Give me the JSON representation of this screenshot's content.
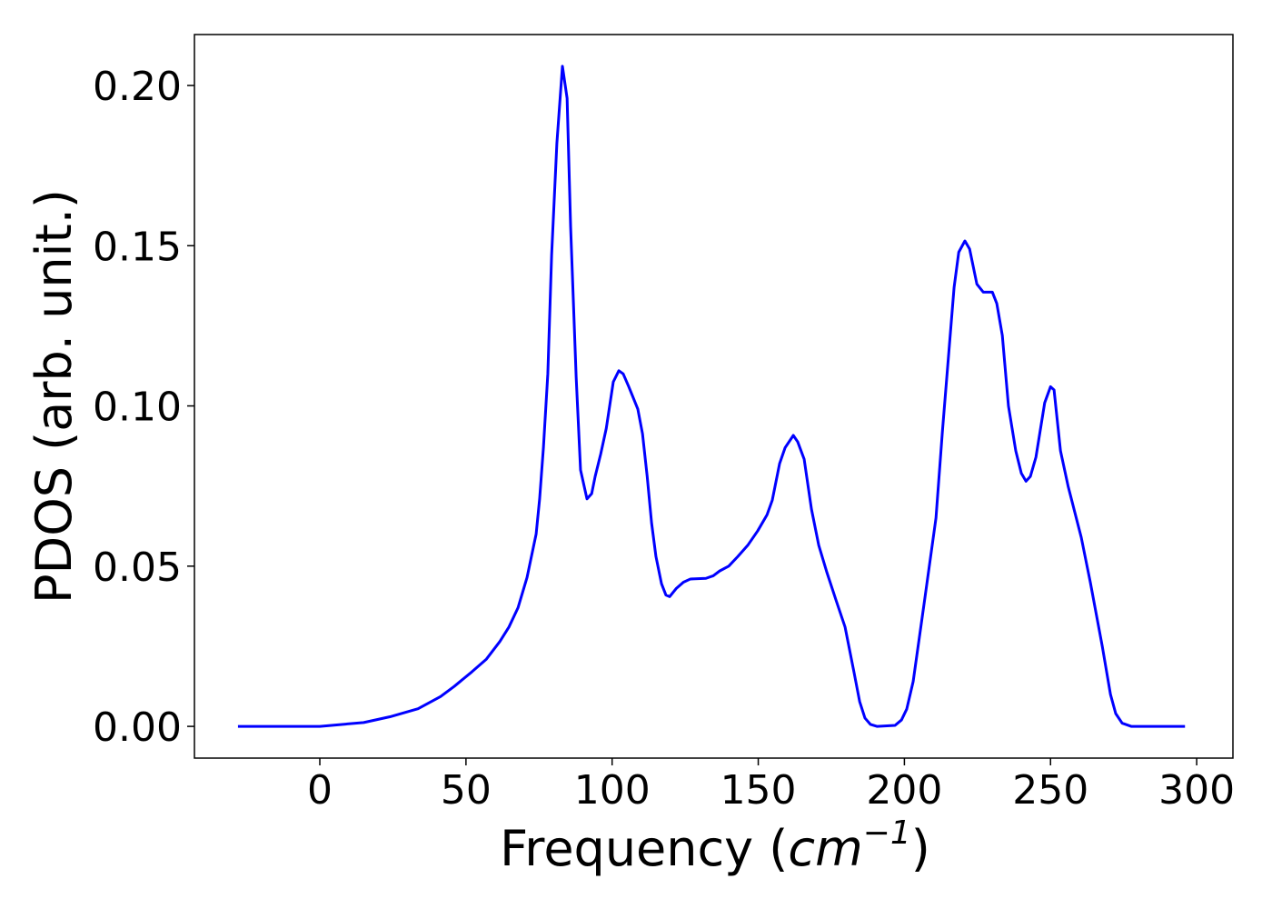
{
  "chart_data": {
    "type": "line",
    "xlabel_parts": [
      "Frequency (",
      "cm",
      "−1",
      ")"
    ],
    "ylabel": "PDOS (arb. unit.)",
    "xlim": [
      -42.9,
      312.4
    ],
    "ylim": [
      -0.0099,
      0.2159
    ],
    "xticks": [
      0,
      50,
      100,
      150,
      200,
      250,
      300
    ],
    "yticks": [
      {
        "value": 0,
        "label": "0.00"
      },
      {
        "value": 0.05,
        "label": "0.05"
      },
      {
        "value": 0.1,
        "label": "0.10"
      },
      {
        "value": 0.15,
        "label": "0.15"
      },
      {
        "value": 0.2,
        "label": "0.20"
      }
    ],
    "grid": false,
    "series": [
      {
        "color": "#0000ff",
        "x": [
          -28,
          -15,
          0,
          6.2,
          15,
          24,
          33.6,
          41.3,
          46,
          52,
          57,
          61.6,
          64.7,
          67.8,
          70.9,
          74,
          75.2,
          76.5,
          78,
          79.3,
          81.1,
          83,
          84.6,
          85.8,
          87.7,
          89.2,
          91.4,
          93,
          94.2,
          96.1,
          98,
          100.4,
          102.3,
          103.8,
          105.7,
          108.8,
          110.4,
          112,
          113.5,
          115,
          116.9,
          118.4,
          119.7,
          121.9,
          124.4,
          126.8,
          132.1,
          134.6,
          136.8,
          139.9,
          143,
          146.4,
          149.8,
          153,
          154.8,
          157.3,
          159.2,
          162,
          163.5,
          165.7,
          168.2,
          170.7,
          173.5,
          176.6,
          179.7,
          182.8,
          184.7,
          186.5,
          188.4,
          190.6,
          196.8,
          199,
          200.8,
          203,
          207,
          210.8,
          213,
          215.4,
          217,
          218.6,
          220.7,
          222.3,
          224.8,
          227,
          230.1,
          231.6,
          233.5,
          235.6,
          238.1,
          240,
          241.6,
          243.1,
          245,
          248,
          250,
          251.2,
          253.4,
          256,
          260.5,
          263.6,
          267.7,
          270.5,
          272.3,
          274.5,
          277.6,
          286,
          296
        ],
        "values": [
          0,
          0,
          0,
          0.0005,
          0.0012,
          0.003,
          0.0055,
          0.0093,
          0.0125,
          0.017,
          0.021,
          0.0265,
          0.031,
          0.037,
          0.0465,
          0.06,
          0.071,
          0.087,
          0.11,
          0.147,
          0.182,
          0.206,
          0.196,
          0.156,
          0.109,
          0.08,
          0.071,
          0.0726,
          0.078,
          0.085,
          0.093,
          0.1075,
          0.111,
          0.11,
          0.106,
          0.099,
          0.0913,
          0.078,
          0.0635,
          0.053,
          0.0445,
          0.041,
          0.0405,
          0.043,
          0.045,
          0.046,
          0.0462,
          0.047,
          0.0485,
          0.05,
          0.053,
          0.0565,
          0.061,
          0.066,
          0.0706,
          0.082,
          0.087,
          0.0908,
          0.0888,
          0.0834,
          0.0678,
          0.0565,
          0.048,
          0.0394,
          0.031,
          0.0167,
          0.0077,
          0.0026,
          0.0006,
          0,
          0.0003,
          0.002,
          0.0054,
          0.014,
          0.04,
          0.065,
          0.092,
          0.119,
          0.137,
          0.148,
          0.1515,
          0.149,
          0.138,
          0.1355,
          0.1355,
          0.132,
          0.122,
          0.1,
          0.086,
          0.079,
          0.0765,
          0.078,
          0.084,
          0.101,
          0.106,
          0.105,
          0.086,
          0.075,
          0.059,
          0.045,
          0.025,
          0.01,
          0.004,
          0.001,
          0,
          0,
          0
        ]
      }
    ]
  }
}
